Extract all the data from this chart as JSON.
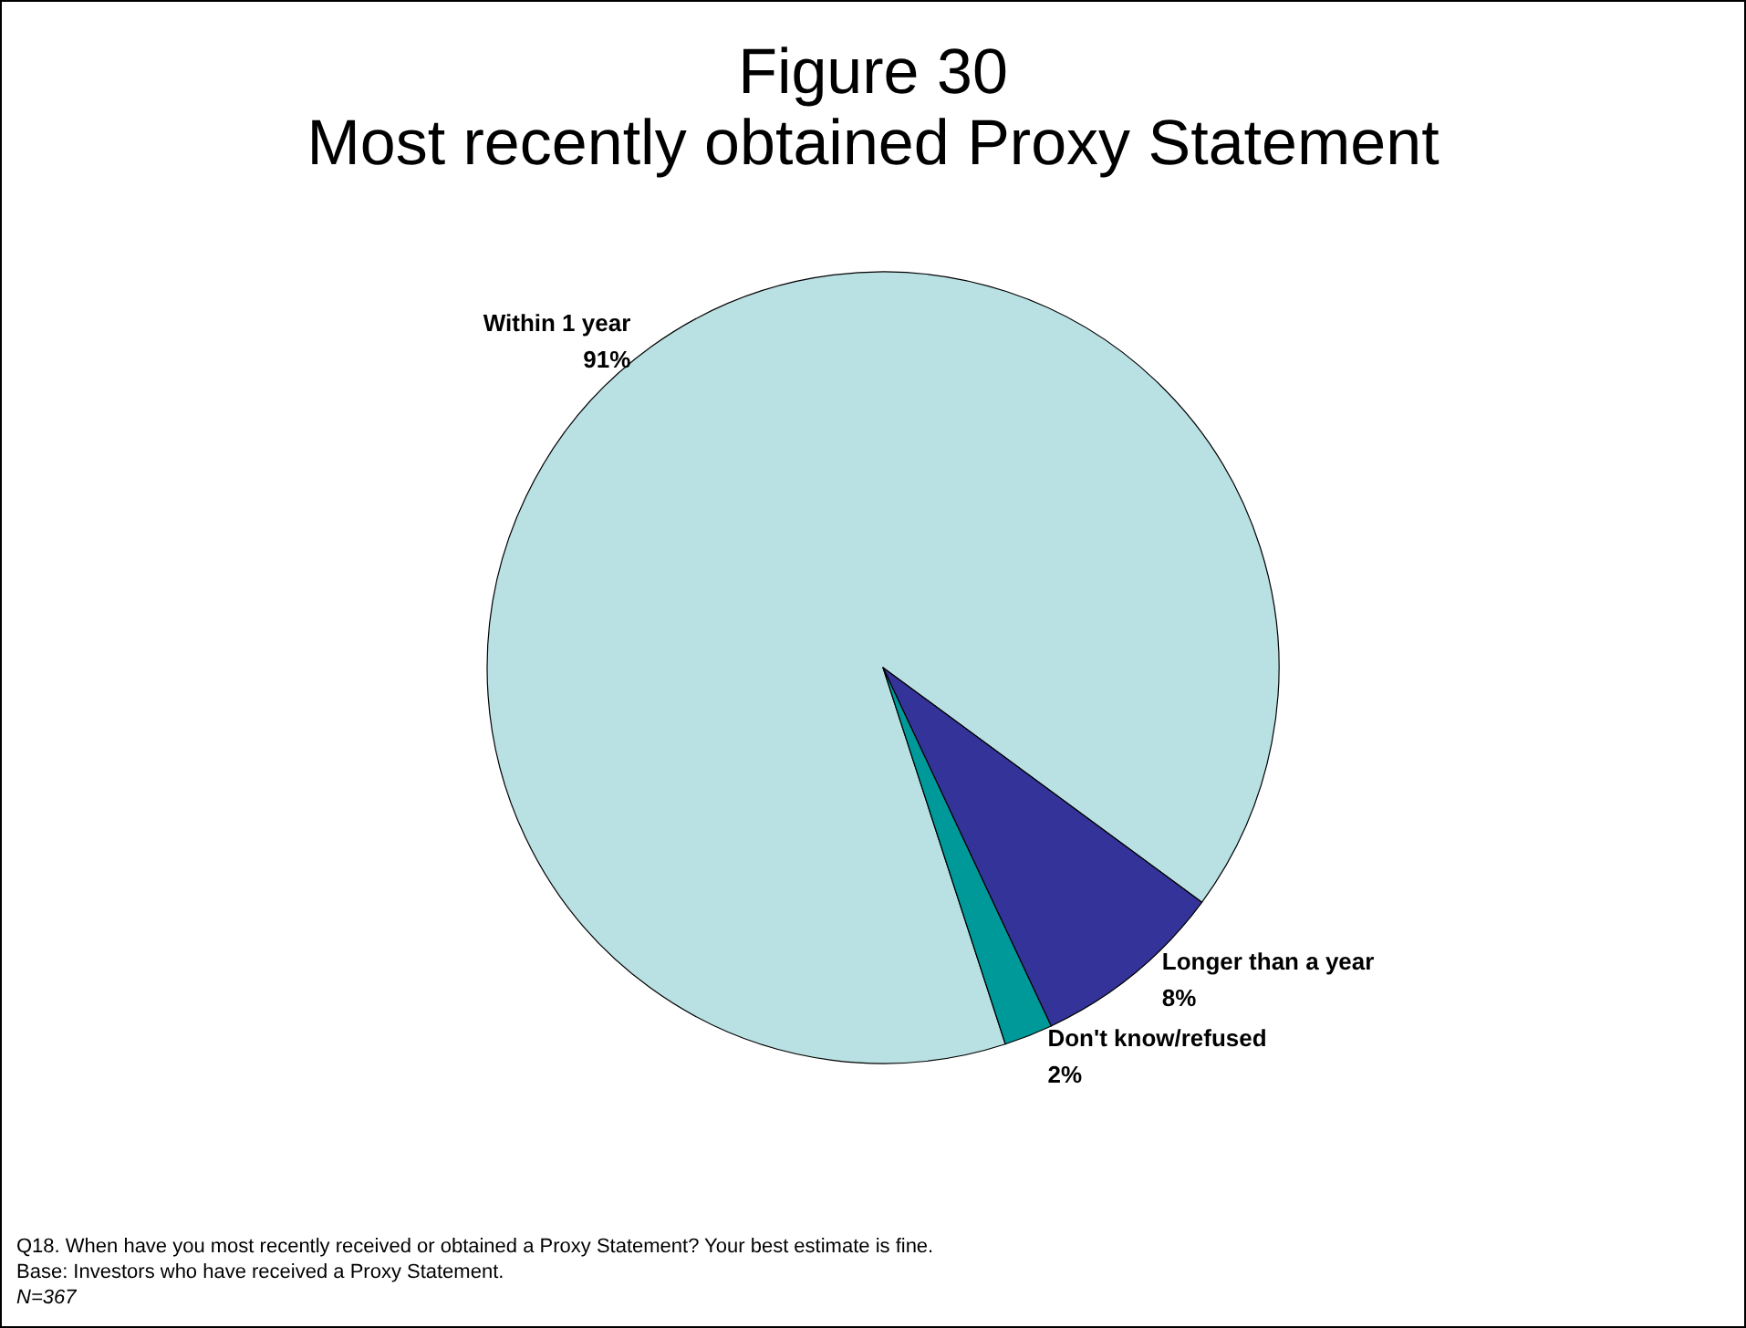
{
  "chart_data": {
    "type": "pie",
    "title": "Figure 30",
    "subtitle": "Most recently obtained Proxy Statement",
    "categories": [
      "Within 1 year",
      "Longer than a year",
      "Don't know/refused"
    ],
    "values": [
      91,
      8,
      2
    ],
    "value_labels": [
      "91%",
      "8%",
      "2%"
    ],
    "colors": [
      "#b9e0e3",
      "#333399",
      "#009999"
    ],
    "legend": false,
    "annotations": [
      "Q18. When have you most recently received or obtained a Proxy Statement? Your best estimate is fine.",
      "Base: Investors who have received a Proxy Statement.",
      "N=367"
    ]
  }
}
